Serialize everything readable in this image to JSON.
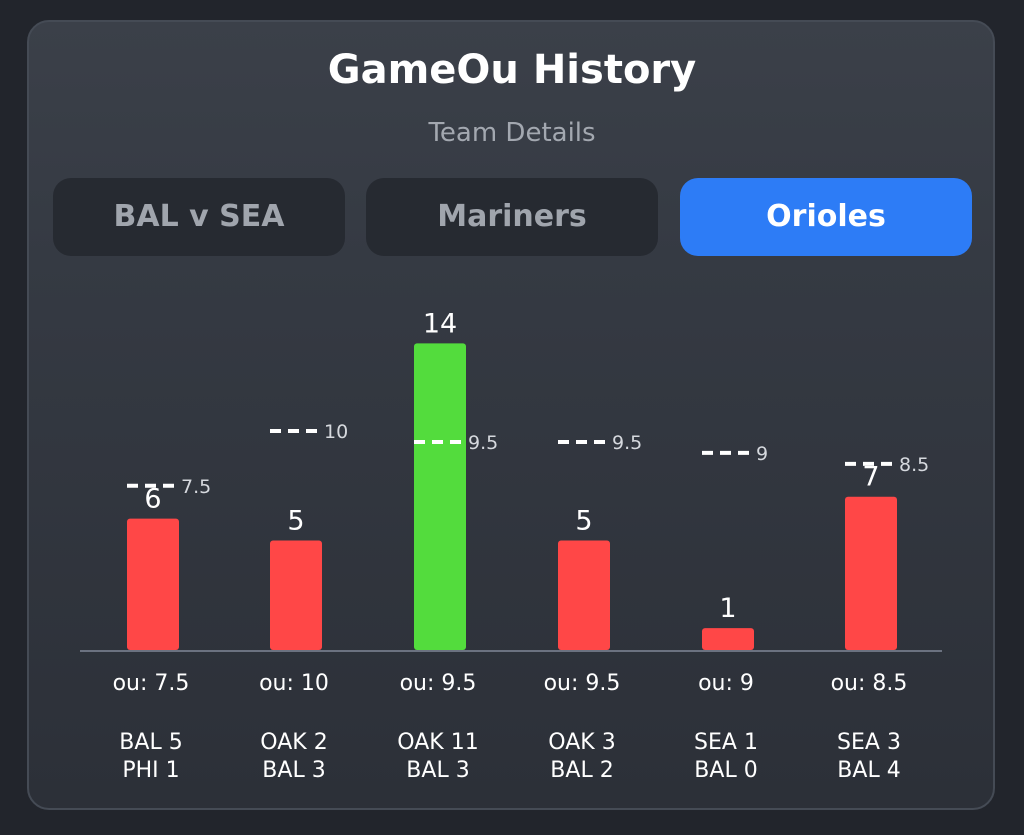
{
  "header": {
    "title": "GameOu History",
    "subtitle": "Team Details"
  },
  "tabs": [
    {
      "label": "BAL v SEA",
      "active": false
    },
    {
      "label": "Mariners",
      "active": false
    },
    {
      "label": "Orioles",
      "active": true
    }
  ],
  "colors": {
    "over": "#53dc3d",
    "under": "#ff4747",
    "active_tab": "#2d7cf6",
    "axis": "#6b7280"
  },
  "chart_data": {
    "type": "bar",
    "title": "",
    "xlabel": "",
    "ylabel": "",
    "ylim": [
      0,
      14
    ],
    "categories": [
      "BAL 5 PHI 1",
      "OAK 2 BAL 3",
      "OAK 11 BAL 3",
      "OAK 3 BAL 2",
      "SEA 1 BAL 0",
      "SEA 3 BAL 4"
    ],
    "games": [
      {
        "total": 6,
        "line": 7.5,
        "line_label": "7.5",
        "ou_label": "ou: 7.5",
        "score_top": "BAL 5",
        "score_bottom": "PHI 1",
        "result": "under"
      },
      {
        "total": 5,
        "line": 10,
        "line_label": "10",
        "ou_label": "ou: 10",
        "score_top": "OAK 2",
        "score_bottom": "BAL 3",
        "result": "under"
      },
      {
        "total": 14,
        "line": 9.5,
        "line_label": "9.5",
        "ou_label": "ou: 9.5",
        "score_top": "OAK 11",
        "score_bottom": "BAL 3",
        "result": "over"
      },
      {
        "total": 5,
        "line": 9.5,
        "line_label": "9.5",
        "ou_label": "ou: 9.5",
        "score_top": "OAK 3",
        "score_bottom": "BAL 2",
        "result": "under"
      },
      {
        "total": 1,
        "line": 9,
        "line_label": "9",
        "ou_label": "ou: 9",
        "score_top": "SEA 1",
        "score_bottom": "BAL 0",
        "result": "under"
      },
      {
        "total": 7,
        "line": 8.5,
        "line_label": "8.5",
        "ou_label": "ou: 8.5",
        "score_top": "SEA 3",
        "score_bottom": "BAL 4",
        "result": "under"
      }
    ]
  }
}
